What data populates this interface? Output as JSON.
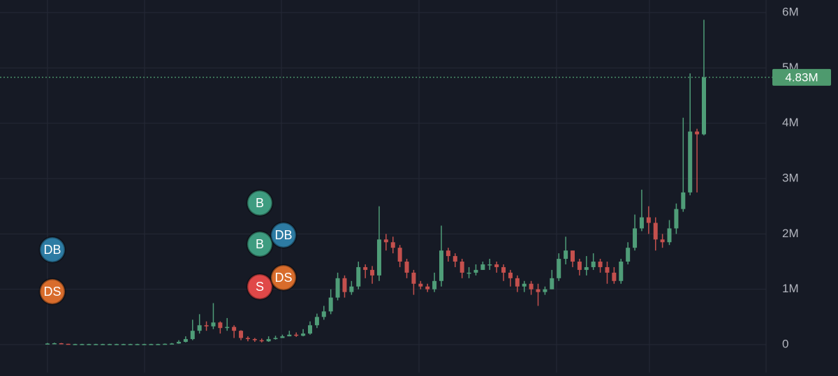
{
  "chart_data": {
    "type": "candlestick",
    "up_color": "#4f9d78",
    "down_color": "#c4504d",
    "grid": true,
    "ylim": [
      -0.504,
      6.227
    ],
    "yticks": [
      {
        "value": 0,
        "label": "0"
      },
      {
        "value": 1,
        "label": "1M"
      },
      {
        "value": 2,
        "label": "2M"
      },
      {
        "value": 3,
        "label": "3M"
      },
      {
        "value": 4,
        "label": "4M"
      },
      {
        "value": 5,
        "label": "5M"
      },
      {
        "value": 6,
        "label": "6M"
      }
    ],
    "last_price": {
      "value": 4.83,
      "label": "4.83M",
      "color": "#4e9a6e"
    },
    "open": [
      0.01,
      0.02,
      0.025,
      0.015,
      0.01,
      0.01,
      0.01,
      0.01,
      0.01,
      0.01,
      0.01,
      0.01,
      0.01,
      0.01,
      0.01,
      0.01,
      0.01,
      0.01,
      0.015,
      0.02,
      0.05,
      0.1,
      0.25,
      0.35,
      0.33,
      0.4,
      0.3,
      0.32,
      0.25,
      0.12,
      0.1,
      0.08,
      0.06,
      0.1,
      0.12,
      0.15,
      0.18,
      0.16,
      0.2,
      0.35,
      0.5,
      0.6,
      0.85,
      1.2,
      0.95,
      1.05,
      1.4,
      1.35,
      1.25,
      1.9,
      1.85,
      1.75,
      1.5,
      1.3,
      1.1,
      1.05,
      1.0,
      1.15,
      1.7,
      1.6,
      1.5,
      1.3,
      1.3,
      1.35,
      1.45,
      1.45,
      1.4,
      1.3,
      1.2,
      1.05,
      1.1,
      1.0,
      0.95,
      1.0,
      1.2,
      1.55,
      1.7,
      1.5,
      1.35,
      1.4,
      1.5,
      1.4,
      1.3,
      1.15,
      1.5,
      1.75,
      2.1,
      2.3,
      2.2,
      1.9,
      1.85,
      2.1,
      2.45,
      2.75,
      3.85,
      3.8
    ],
    "high": [
      0.03,
      0.035,
      0.03,
      0.015,
      0.015,
      0.015,
      0.015,
      0.015,
      0.015,
      0.015,
      0.015,
      0.015,
      0.015,
      0.015,
      0.015,
      0.015,
      0.015,
      0.02,
      0.03,
      0.08,
      0.15,
      0.45,
      0.55,
      0.42,
      0.75,
      0.42,
      0.48,
      0.35,
      0.26,
      0.15,
      0.12,
      0.11,
      0.15,
      0.16,
      0.18,
      0.25,
      0.22,
      0.28,
      0.42,
      0.56,
      0.7,
      1.0,
      1.3,
      1.25,
      1.15,
      1.5,
      1.45,
      1.42,
      2.5,
      2.0,
      1.95,
      1.8,
      1.55,
      1.35,
      1.15,
      1.1,
      1.3,
      2.15,
      1.75,
      1.65,
      1.55,
      1.4,
      1.45,
      1.5,
      1.55,
      1.5,
      1.45,
      1.35,
      1.25,
      1.15,
      1.15,
      1.1,
      1.05,
      1.35,
      1.65,
      1.95,
      1.7,
      1.55,
      1.6,
      1.65,
      1.55,
      1.5,
      1.4,
      1.55,
      1.85,
      2.35,
      2.8,
      2.5,
      2.3,
      2.0,
      2.25,
      2.55,
      4.1,
      4.9,
      3.9,
      5.87
    ],
    "low": [
      0.005,
      0.015,
      0.01,
      0.005,
      0.005,
      0.005,
      0.005,
      0.005,
      0.005,
      0.005,
      0.005,
      0.005,
      0.005,
      0.005,
      0.005,
      0.005,
      0.005,
      0.005,
      0.01,
      0.015,
      0.04,
      0.08,
      0.2,
      0.25,
      0.28,
      0.2,
      0.25,
      0.12,
      0.08,
      0.06,
      0.05,
      0.04,
      0.05,
      0.09,
      0.12,
      0.15,
      0.14,
      0.15,
      0.18,
      0.3,
      0.45,
      0.55,
      0.8,
      0.85,
      0.9,
      1.0,
      1.2,
      1.1,
      1.15,
      1.7,
      1.65,
      1.4,
      1.2,
      0.9,
      1.0,
      0.95,
      0.95,
      1.05,
      1.5,
      1.4,
      1.2,
      1.2,
      1.25,
      1.35,
      1.35,
      1.3,
      1.15,
      1.05,
      0.95,
      0.95,
      0.9,
      0.7,
      0.9,
      1.0,
      1.15,
      1.45,
      1.4,
      1.25,
      1.25,
      1.35,
      1.3,
      1.1,
      1.1,
      1.1,
      1.45,
      1.7,
      2.05,
      2.0,
      1.7,
      1.75,
      1.8,
      2.0,
      2.4,
      2.7,
      2.75,
      3.78
    ],
    "close": [
      0.02,
      0.025,
      0.015,
      0.01,
      0.01,
      0.01,
      0.01,
      0.01,
      0.01,
      0.01,
      0.01,
      0.01,
      0.01,
      0.01,
      0.01,
      0.01,
      0.01,
      0.015,
      0.02,
      0.05,
      0.1,
      0.25,
      0.35,
      0.33,
      0.4,
      0.3,
      0.32,
      0.25,
      0.12,
      0.1,
      0.08,
      0.06,
      0.1,
      0.12,
      0.15,
      0.18,
      0.16,
      0.2,
      0.35,
      0.5,
      0.6,
      0.85,
      1.2,
      0.95,
      1.05,
      1.4,
      1.35,
      1.25,
      1.9,
      1.85,
      1.75,
      1.5,
      1.3,
      1.1,
      1.05,
      1.0,
      1.15,
      1.7,
      1.6,
      1.5,
      1.3,
      1.3,
      1.35,
      1.45,
      1.45,
      1.4,
      1.3,
      1.2,
      1.05,
      1.1,
      1.0,
      0.95,
      1.0,
      1.2,
      1.55,
      1.7,
      1.5,
      1.35,
      1.4,
      1.5,
      1.4,
      1.3,
      1.15,
      1.5,
      1.75,
      2.1,
      2.3,
      2.2,
      1.9,
      1.85,
      2.1,
      2.45,
      2.75,
      3.85,
      3.8,
      4.83
    ],
    "annotations": [
      {
        "label": "DB",
        "color": "#2d7ba3"
      },
      {
        "label": "DS",
        "color": "#d86c2c"
      },
      {
        "label": "B",
        "color": "#3e9c80"
      },
      {
        "label": "B",
        "color": "#3e9c80"
      },
      {
        "label": "DB",
        "color": "#2d7ba3"
      },
      {
        "label": "S",
        "color": "#e04848"
      },
      {
        "label": "DS",
        "color": "#d86c2c"
      }
    ]
  }
}
